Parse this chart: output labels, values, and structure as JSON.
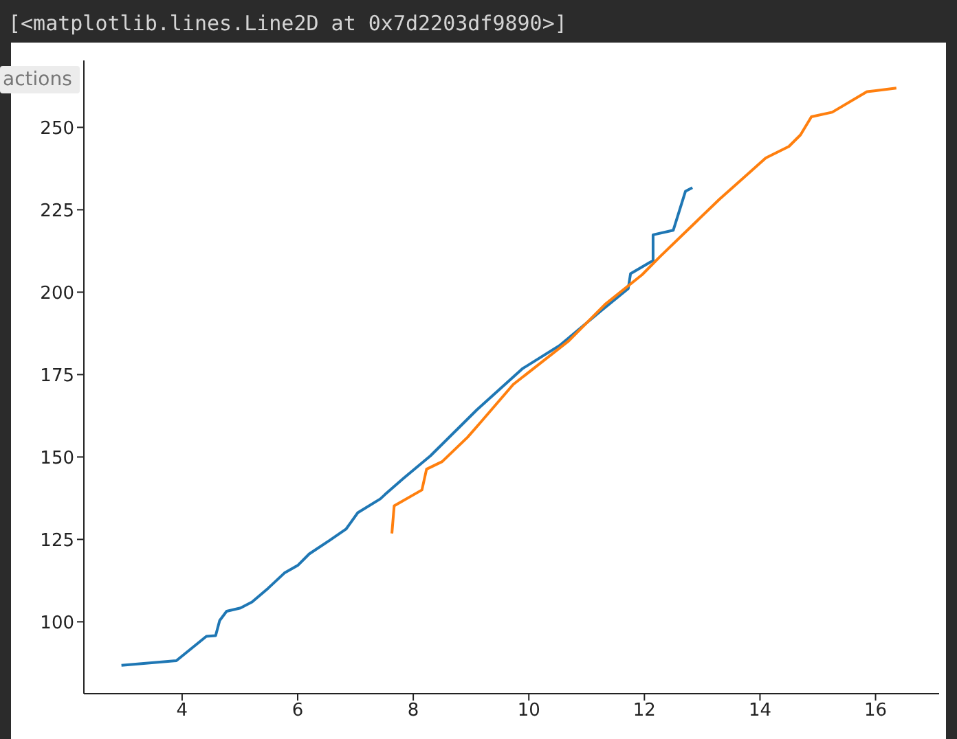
{
  "chart_data": {
    "type": "line",
    "annotations": [
      "[<matplotlib.lines.Line2D at 0x7d2203df9890>]",
      "actions"
    ],
    "series": [
      {
        "color": "#1f77b4",
        "x": [
          2.95,
          3.9,
          4.42,
          4.58,
          4.65,
          4.77,
          5.01,
          5.21,
          5.49,
          5.77,
          6.0,
          6.2,
          6.56,
          6.84,
          7.04,
          7.43,
          7.51,
          7.83,
          8.3,
          9.1,
          9.89,
          10.53,
          11.24,
          11.72,
          11.76,
          12.11,
          12.15,
          12.15,
          12.5,
          12.71,
          12.83
        ],
        "values": [
          86.8,
          88.2,
          95.6,
          95.8,
          100.4,
          103.2,
          104.2,
          106.0,
          110.2,
          114.8,
          117.1,
          120.6,
          124.8,
          128.2,
          133.1,
          137.3,
          138.6,
          143.5,
          150.4,
          164.3,
          176.8,
          183.8,
          194.2,
          201.1,
          205.6,
          209.2,
          209.5,
          217.4,
          218.8,
          230.6,
          231.7
        ]
      },
      {
        "color": "#ff7f0e",
        "x": [
          7.63,
          7.67,
          8.15,
          8.23,
          8.5,
          8.94,
          9.18,
          9.73,
          10.69,
          11.32,
          11.96,
          12.27,
          13.3,
          14.1,
          14.5,
          14.7,
          14.89,
          15.25,
          15.85,
          16.36
        ],
        "values": [
          126.8,
          135.2,
          140.0,
          146.3,
          148.6,
          156.0,
          160.8,
          172.0,
          185.2,
          196.3,
          205.3,
          210.8,
          228.2,
          240.7,
          244.2,
          247.7,
          253.2,
          254.6,
          260.8,
          261.9
        ]
      }
    ],
    "xlim": [
      2.3,
      17.1
    ],
    "xticks": [
      4,
      6,
      8,
      10,
      12,
      14,
      16
    ],
    "ylim": [
      78.2,
      270.3
    ],
    "yticks": [
      100,
      125,
      150,
      175,
      200,
      225,
      250
    ],
    "marker": "none",
    "line_style": "solid"
  }
}
